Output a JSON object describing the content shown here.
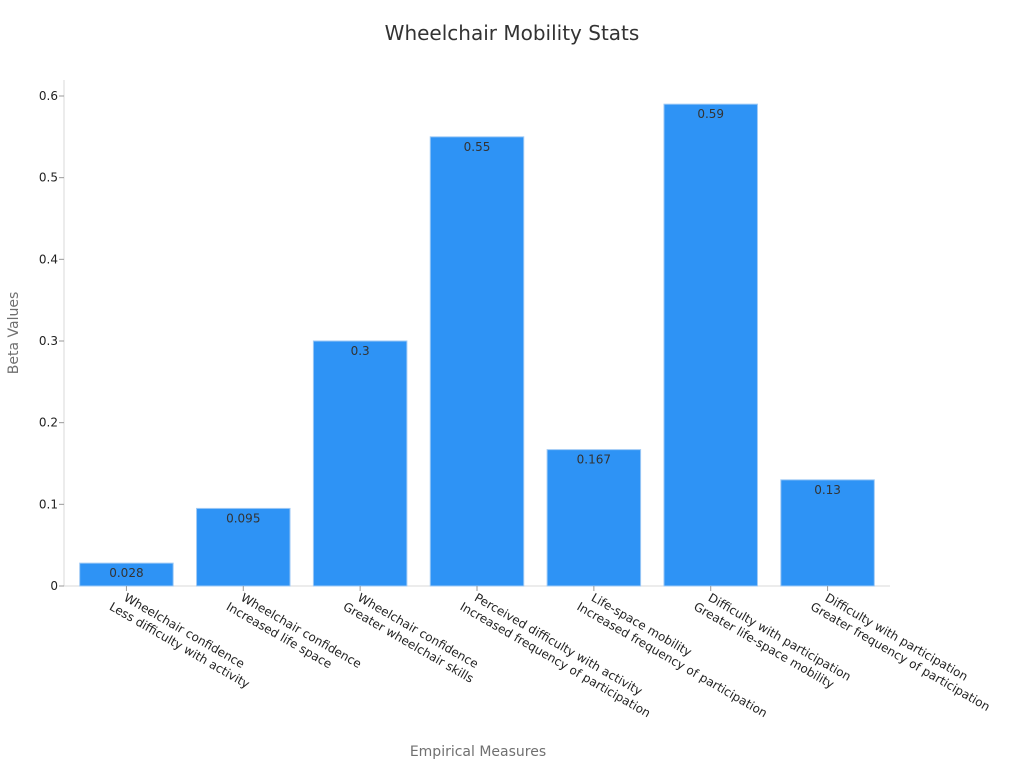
{
  "chart_data": {
    "type": "bar",
    "title": "Wheelchair Mobility Stats",
    "xlabel": "Empirical Measures",
    "ylabel": "Beta Values",
    "ylim": [
      0,
      0.6
    ],
    "yticks": [
      "0",
      "0.1",
      "0.2",
      "0.3",
      "0.4",
      "0.5",
      "0.6"
    ],
    "grid": false,
    "bar_color": "#2e93f5",
    "categories": [
      [
        "Wheelchair confidence",
        "Less difficulty with activity"
      ],
      [
        "Wheelchair confidence",
        "Increased life space"
      ],
      [
        "Wheelchair confidence",
        "Greater wheelchair skills"
      ],
      [
        "Perceived difficulty with activity",
        "Increased frequency of participation"
      ],
      [
        "Life-space mobility",
        "Increased frequency of participation"
      ],
      [
        "Difficulty with participation",
        "Greater life-space mobility"
      ],
      [
        "Difficulty with participation",
        "Greater frequency of participation"
      ]
    ],
    "values": [
      0.028,
      0.095,
      0.3,
      0.55,
      0.167,
      0.59,
      0.13
    ],
    "value_labels": [
      "0.028",
      "0.095",
      "0.3",
      "0.55",
      "0.167",
      "0.59",
      "0.13"
    ]
  }
}
